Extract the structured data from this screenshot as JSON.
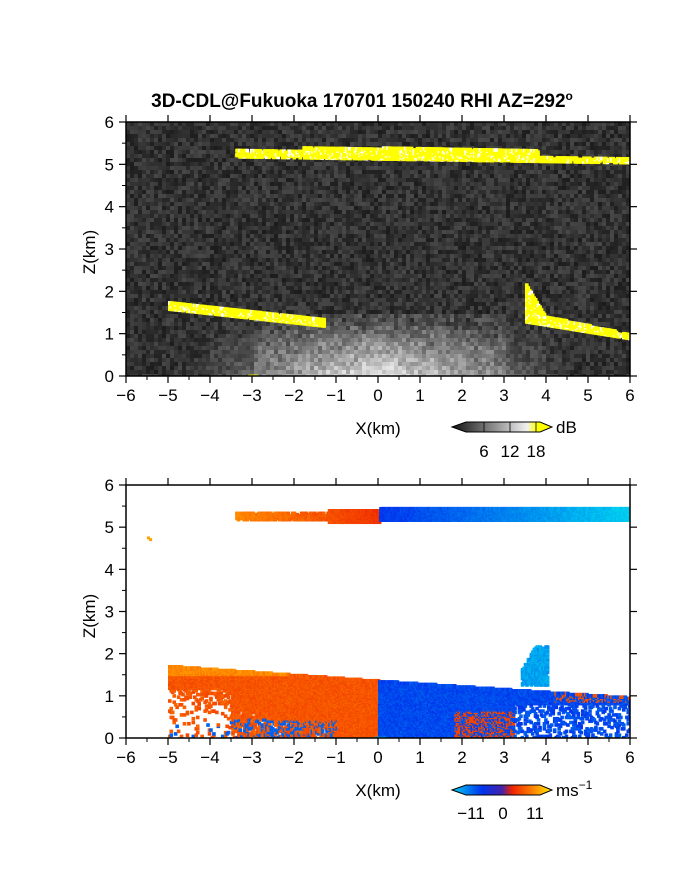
{
  "title_main": "3D-CDL@Fukuoka 170701 150240 RHI AZ=292",
  "title_deg": "o",
  "chart_data": [
    {
      "type": "heatmap",
      "quantity": "reflectivity",
      "xlabel": "X(km)",
      "ylabel": "Z(km)",
      "xlim": [
        -6,
        6
      ],
      "ylim": [
        0,
        6
      ],
      "xticks": [
        -6,
        -5,
        -4,
        -3,
        -2,
        -1,
        0,
        1,
        2,
        3,
        4,
        5,
        6
      ],
      "yticks": [
        0,
        1,
        2,
        3,
        4,
        5,
        6
      ],
      "colorbar": {
        "unit": "dB",
        "ticks": [
          6,
          12,
          18
        ],
        "colors": [
          "#000000",
          "#ffffff",
          "#ffff00"
        ]
      },
      "features": [
        {
          "name": "upper-layer",
          "x": [
            -3.4,
            6.0
          ],
          "z_center": 5.3,
          "z_half": 0.12
        },
        {
          "name": "left-slab",
          "x": [
            -5.0,
            -1.3
          ],
          "z_top": [
            1.75,
            1.35
          ],
          "z_bottom": [
            1.6,
            1.2
          ]
        },
        {
          "name": "right-slab",
          "x": [
            3.5,
            6.0
          ],
          "z_top": [
            1.6,
            1.0
          ],
          "z_bottom": [
            1.3,
            0.9
          ]
        },
        {
          "name": "plume",
          "x": [
            3.5,
            3.9
          ],
          "z": [
            1.5,
            2.2
          ]
        }
      ]
    },
    {
      "type": "heatmap",
      "quantity": "doppler-velocity",
      "xlabel": "X(km)",
      "ylabel": "Z(km)",
      "xlim": [
        -6,
        6
      ],
      "ylim": [
        0,
        6
      ],
      "xticks": [
        -6,
        -5,
        -4,
        -3,
        -2,
        -1,
        0,
        1,
        2,
        3,
        4,
        5,
        6
      ],
      "yticks": [
        0,
        1,
        2,
        3,
        4,
        5,
        6
      ],
      "colorbar": {
        "unit": "ms",
        "unit_exp": "−1",
        "ticks": [
          "−11",
          "0",
          "11"
        ],
        "colors": [
          "#00ccee",
          "#0033ee",
          "#ee2200",
          "#ff8800",
          "#ffee00"
        ]
      },
      "features": [
        {
          "name": "upper-layer",
          "x": [
            -3.4,
            6.0
          ],
          "z_center": 5.3,
          "z_half": 0.13,
          "v": [
            7,
            0,
            -10
          ]
        },
        {
          "name": "lower-left",
          "x": [
            -5.0,
            0.0
          ],
          "v": 4
        },
        {
          "name": "lower-right",
          "x": [
            0.0,
            6.0
          ],
          "v": -5
        },
        {
          "name": "plume",
          "x": [
            3.4,
            4.0
          ],
          "z": [
            1.3,
            2.2
          ],
          "v": -9
        }
      ]
    }
  ]
}
